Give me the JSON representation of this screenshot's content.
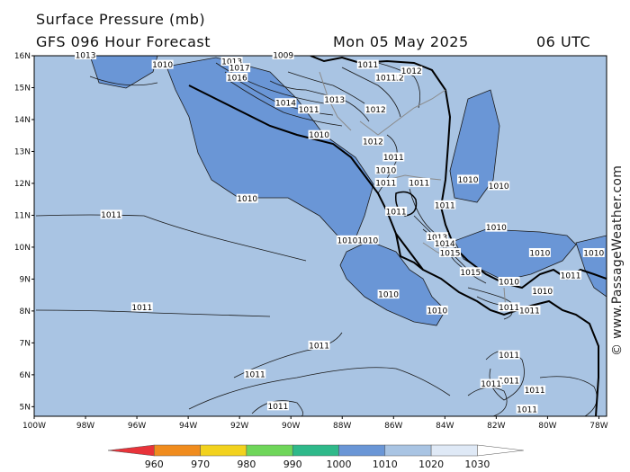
{
  "header": {
    "title_line1": "Surface Pressure (mb)",
    "title_line2": "GFS 096 Hour Forecast",
    "date": "Mon 05 May 2025",
    "time": "06 UTC"
  },
  "credit": "© www.PassageWeather.com",
  "axes": {
    "lat_labels": [
      "16N",
      "15N",
      "14N",
      "13N",
      "12N",
      "11N",
      "10N",
      "9N",
      "8N",
      "7N",
      "6N",
      "5N"
    ],
    "lon_labels": [
      "100W",
      "98W",
      "96W",
      "94W",
      "92W",
      "90W",
      "88W",
      "86W",
      "84W",
      "82W",
      "80W",
      "78W"
    ]
  },
  "colors": {
    "ocean_base": "#a9c4e3",
    "low_pressure": "#6a96d6",
    "land_outline": "#000000",
    "isobar": "#1a1a1a"
  },
  "isobar_labels": [
    {
      "text": "1010",
      "lon": -95.0,
      "lat": 15.7
    },
    {
      "text": "1011",
      "lon": -97.0,
      "lat": 11.0
    },
    {
      "text": "1010",
      "lon": -91.7,
      "lat": 11.5
    },
    {
      "text": "1011",
      "lon": -95.8,
      "lat": 8.1
    },
    {
      "text": "1011",
      "lon": -88.9,
      "lat": 6.9
    },
    {
      "text": "1011",
      "lon": -91.4,
      "lat": 6.0
    },
    {
      "text": "1011",
      "lon": -90.5,
      "lat": 5.0
    },
    {
      "text": "1010",
      "lon": -88.9,
      "lat": 13.5
    },
    {
      "text": "1013",
      "lon": -88.3,
      "lat": 14.6
    },
    {
      "text": "1014",
      "lon": -90.2,
      "lat": 14.5
    },
    {
      "text": "1011",
      "lon": -89.3,
      "lat": 14.3
    },
    {
      "text": "1012",
      "lon": -86.8,
      "lat": 13.3
    },
    {
      "text": "1011",
      "lon": -86.0,
      "lat": 12.8
    },
    {
      "text": "1010",
      "lon": -86.3,
      "lat": 12.4
    },
    {
      "text": "1011",
      "lon": -86.3,
      "lat": 12.0
    },
    {
      "text": "1011",
      "lon": -85.0,
      "lat": 12.0
    },
    {
      "text": "1011",
      "lon": -84.0,
      "lat": 11.3
    },
    {
      "text": "1011",
      "lon": -85.9,
      "lat": 11.1
    },
    {
      "text": "1010",
      "lon": -87.8,
      "lat": 10.2
    },
    {
      "text": "1010",
      "lon": -87.0,
      "lat": 10.2
    },
    {
      "text": "1010",
      "lon": -86.2,
      "lat": 8.5
    },
    {
      "text": "1010",
      "lon": -84.3,
      "lat": 8.0
    },
    {
      "text": "1013",
      "lon": -84.3,
      "lat": 10.3
    },
    {
      "text": "1014",
      "lon": -84.0,
      "lat": 10.1
    },
    {
      "text": "1015",
      "lon": -83.8,
      "lat": 9.8
    },
    {
      "text": "1015",
      "lon": -83.0,
      "lat": 9.2
    },
    {
      "text": "1010",
      "lon": -83.1,
      "lat": 12.1
    },
    {
      "text": "1010",
      "lon": -81.9,
      "lat": 11.9
    },
    {
      "text": "1010",
      "lon": -82.0,
      "lat": 10.6
    },
    {
      "text": "1010",
      "lon": -80.3,
      "lat": 9.8
    },
    {
      "text": "1010",
      "lon": -78.2,
      "lat": 9.8
    },
    {
      "text": "1010",
      "lon": -81.5,
      "lat": 8.9
    },
    {
      "text": "1010",
      "lon": -80.2,
      "lat": 8.6
    },
    {
      "text": "1011",
      "lon": -79.1,
      "lat": 9.1
    },
    {
      "text": "1011",
      "lon": -80.7,
      "lat": 8.0
    },
    {
      "text": "1011",
      "lon": -81.5,
      "lat": 8.1
    },
    {
      "text": "1011",
      "lon": -81.5,
      "lat": 6.6
    },
    {
      "text": "1011",
      "lon": -81.5,
      "lat": 5.8
    },
    {
      "text": "1011",
      "lon": -82.2,
      "lat": 5.7
    },
    {
      "text": "1011",
      "lon": -80.5,
      "lat": 5.5
    },
    {
      "text": "1011",
      "lon": -80.8,
      "lat": 4.9
    },
    {
      "text": "1012",
      "lon": -86.7,
      "lat": 14.3
    },
    {
      "text": "1011",
      "lon": -87.0,
      "lat": 15.7
    },
    {
      "text": "1012",
      "lon": -86.0,
      "lat": 15.3
    },
    {
      "text": "1011",
      "lon": -86.3,
      "lat": 15.3
    },
    {
      "text": "1012",
      "lon": -85.3,
      "lat": 15.5
    },
    {
      "text": "1013",
      "lon": -92.3,
      "lat": 15.8
    },
    {
      "text": "1017",
      "lon": -92.0,
      "lat": 15.6
    },
    {
      "text": "1016",
      "lon": -92.1,
      "lat": 15.3
    },
    {
      "text": "1013",
      "lon": -98.0,
      "lat": 16.0
    },
    {
      "text": "1009",
      "lon": -90.3,
      "lat": 16.0
    }
  ],
  "legend": {
    "labels": [
      "960",
      "970",
      "980",
      "990",
      "1000",
      "1010",
      "1020",
      "1030"
    ],
    "colors": [
      "#e8333a",
      "#f08c1e",
      "#f2d21e",
      "#6fd65a",
      "#2fb98a",
      "#6a96d6",
      "#a9c4e3",
      "#dfe9f6"
    ]
  }
}
